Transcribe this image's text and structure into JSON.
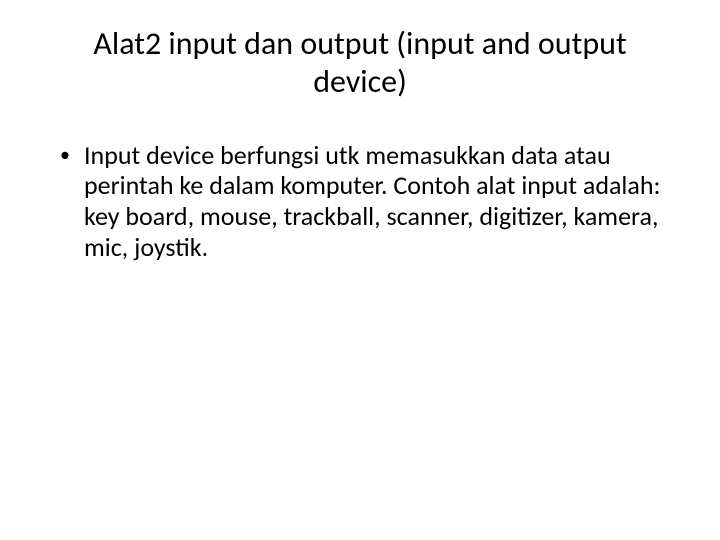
{
  "slide": {
    "title": "Alat2 input dan output (input and output device)",
    "title_fontsize": 32,
    "title_color": "#000000",
    "body_fontsize": 26,
    "body_color": "#000000",
    "background_color": "#ffffff",
    "bullets": [
      {
        "text": "Input device berfungsi utk memasukkan data atau perintah ke dalam komputer.  Contoh alat input adalah: key board, mouse, trackball, scanner, digitizer, kamera, mic, joystik."
      }
    ],
    "bullet_marker": "•"
  }
}
